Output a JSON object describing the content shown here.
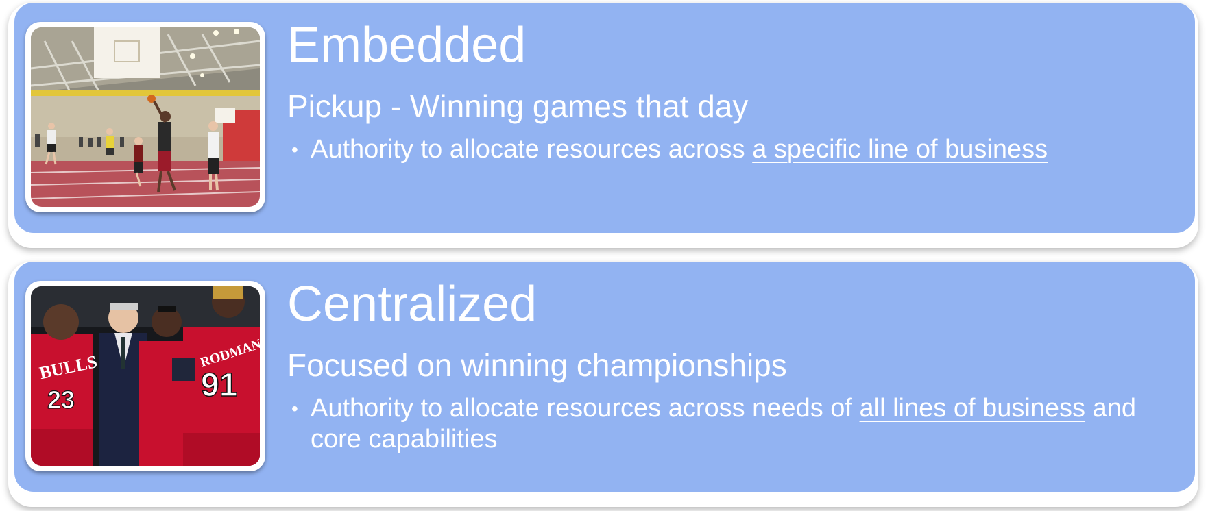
{
  "cards": [
    {
      "title": "Embedded",
      "subtitle": "Pickup - Winning games that day",
      "bullet_prefix": "Authority to allocate resources across ",
      "bullet_underlined": "a specific line of business",
      "bullet_suffix": "",
      "image": "indoor pickup basketball gym photo"
    },
    {
      "title": "Centralized",
      "subtitle": "Focused on winning championships",
      "bullet_prefix": "Authority to allocate resources across needs of ",
      "bullet_underlined": "all lines of business",
      "bullet_suffix": " and core capabilities",
      "image": "professional basketball team huddle photo",
      "jersey_numbers": [
        "23",
        "91"
      ],
      "jersey_text": [
        "BULLS",
        "RODMAN"
      ]
    }
  ],
  "colors": {
    "card_fill": "#92b3f2",
    "text": "#ffffff",
    "frame": "#ffffff",
    "jersey_red": "#c8102e"
  }
}
